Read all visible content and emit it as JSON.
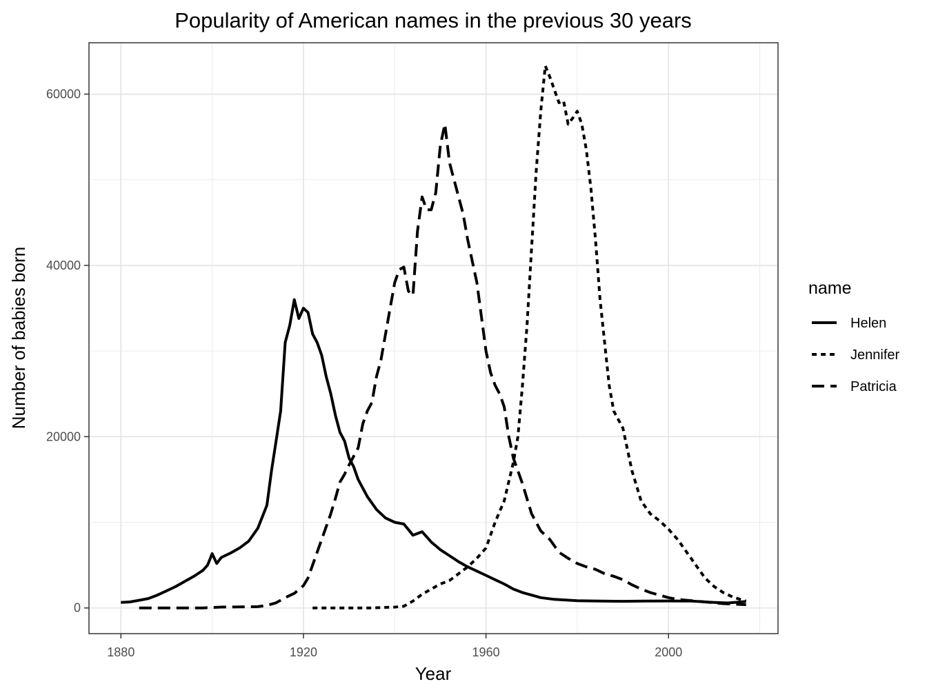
{
  "chart_data": {
    "type": "line",
    "title": "Popularity of American names in the previous 30 years",
    "xlabel": "Year",
    "ylabel": "Number of babies born",
    "xlim": [
      1873,
      2024
    ],
    "ylim": [
      -3000,
      66000
    ],
    "xticks": [
      1880,
      1920,
      1960,
      2000
    ],
    "yticks": [
      0,
      20000,
      40000,
      60000
    ],
    "grid": true,
    "legend": {
      "title": "name",
      "position": "right"
    },
    "series": [
      {
        "name": "Helen",
        "dash": "solid",
        "points": [
          [
            1880,
            636
          ],
          [
            1882,
            700
          ],
          [
            1884,
            900
          ],
          [
            1886,
            1100
          ],
          [
            1888,
            1500
          ],
          [
            1890,
            2000
          ],
          [
            1892,
            2500
          ],
          [
            1894,
            3100
          ],
          [
            1896,
            3700
          ],
          [
            1898,
            4400
          ],
          [
            1899,
            5000
          ],
          [
            1900,
            6343
          ],
          [
            1901,
            5200
          ],
          [
            1902,
            5900
          ],
          [
            1904,
            6400
          ],
          [
            1906,
            7000
          ],
          [
            1908,
            7800
          ],
          [
            1910,
            9300
          ],
          [
            1912,
            12000
          ],
          [
            1913,
            16000
          ],
          [
            1914,
            19500
          ],
          [
            1915,
            23000
          ],
          [
            1916,
            31000
          ],
          [
            1917,
            33000
          ],
          [
            1918,
            36000
          ],
          [
            1919,
            33800
          ],
          [
            1920,
            35000
          ],
          [
            1921,
            34500
          ],
          [
            1922,
            32000
          ],
          [
            1923,
            31000
          ],
          [
            1924,
            29500
          ],
          [
            1925,
            27000
          ],
          [
            1926,
            25000
          ],
          [
            1927,
            22500
          ],
          [
            1928,
            20500
          ],
          [
            1929,
            19500
          ],
          [
            1930,
            17500
          ],
          [
            1931,
            16500
          ],
          [
            1932,
            15000
          ],
          [
            1934,
            13000
          ],
          [
            1936,
            11500
          ],
          [
            1938,
            10500
          ],
          [
            1940,
            10000
          ],
          [
            1942,
            9800
          ],
          [
            1944,
            8500
          ],
          [
            1946,
            8900
          ],
          [
            1948,
            7700
          ],
          [
            1950,
            6800
          ],
          [
            1952,
            6100
          ],
          [
            1954,
            5400
          ],
          [
            1956,
            4800
          ],
          [
            1958,
            4300
          ],
          [
            1960,
            3800
          ],
          [
            1962,
            3300
          ],
          [
            1964,
            2800
          ],
          [
            1966,
            2200
          ],
          [
            1968,
            1800
          ],
          [
            1970,
            1500
          ],
          [
            1972,
            1200
          ],
          [
            1975,
            1000
          ],
          [
            1980,
            850
          ],
          [
            1985,
            800
          ],
          [
            1990,
            780
          ],
          [
            1995,
            800
          ],
          [
            2000,
            820
          ],
          [
            2005,
            800
          ],
          [
            2010,
            650
          ],
          [
            2013,
            580
          ],
          [
            2017,
            750
          ]
        ]
      },
      {
        "name": "Jennifer",
        "dash": "dotted",
        "points": [
          [
            1922,
            0
          ],
          [
            1935,
            0
          ],
          [
            1940,
            100
          ],
          [
            1942,
            200
          ],
          [
            1944,
            800
          ],
          [
            1946,
            1600
          ],
          [
            1948,
            2200
          ],
          [
            1950,
            2800
          ],
          [
            1952,
            3200
          ],
          [
            1954,
            4000
          ],
          [
            1956,
            4800
          ],
          [
            1958,
            5800
          ],
          [
            1960,
            7000
          ],
          [
            1962,
            10000
          ],
          [
            1964,
            12500
          ],
          [
            1966,
            17000
          ],
          [
            1967,
            20000
          ],
          [
            1968,
            26000
          ],
          [
            1969,
            33000
          ],
          [
            1970,
            42000
          ],
          [
            1971,
            51000
          ],
          [
            1972,
            58000
          ],
          [
            1973,
            63300
          ],
          [
            1974,
            62000
          ],
          [
            1975,
            60500
          ],
          [
            1976,
            59000
          ],
          [
            1977,
            59200
          ],
          [
            1978,
            56500
          ],
          [
            1979,
            57200
          ],
          [
            1980,
            58000
          ],
          [
            1981,
            56500
          ],
          [
            1982,
            53500
          ],
          [
            1983,
            49000
          ],
          [
            1984,
            43000
          ],
          [
            1985,
            36000
          ],
          [
            1986,
            31000
          ],
          [
            1987,
            26000
          ],
          [
            1988,
            23000
          ],
          [
            1990,
            21000
          ],
          [
            1992,
            16000
          ],
          [
            1994,
            12500
          ],
          [
            1996,
            11000
          ],
          [
            1998,
            10200
          ],
          [
            2000,
            9200
          ],
          [
            2002,
            8000
          ],
          [
            2004,
            6500
          ],
          [
            2006,
            5000
          ],
          [
            2008,
            3500
          ],
          [
            2010,
            2500
          ],
          [
            2012,
            1800
          ],
          [
            2014,
            1300
          ],
          [
            2016,
            950
          ],
          [
            2017,
            800
          ]
        ]
      },
      {
        "name": "Patricia",
        "dash": "dashed",
        "points": [
          [
            1884,
            0
          ],
          [
            1898,
            0
          ],
          [
            1902,
            100
          ],
          [
            1910,
            150
          ],
          [
            1912,
            300
          ],
          [
            1914,
            600
          ],
          [
            1916,
            1200
          ],
          [
            1918,
            1700
          ],
          [
            1920,
            2600
          ],
          [
            1921,
            3500
          ],
          [
            1922,
            5000
          ],
          [
            1923,
            6500
          ],
          [
            1924,
            8000
          ],
          [
            1925,
            9500
          ],
          [
            1926,
            11000
          ],
          [
            1927,
            12800
          ],
          [
            1928,
            14700
          ],
          [
            1929,
            15600
          ],
          [
            1930,
            16700
          ],
          [
            1931,
            17700
          ],
          [
            1932,
            18700
          ],
          [
            1933,
            21500
          ],
          [
            1934,
            23000
          ],
          [
            1935,
            24000
          ],
          [
            1936,
            27000
          ],
          [
            1937,
            29000
          ],
          [
            1938,
            32000
          ],
          [
            1939,
            35000
          ],
          [
            1940,
            38000
          ],
          [
            1941,
            39500
          ],
          [
            1942,
            39800
          ],
          [
            1943,
            37000
          ],
          [
            1944,
            36500
          ],
          [
            1945,
            44000
          ],
          [
            1946,
            48000
          ],
          [
            1947,
            46500
          ],
          [
            1948,
            46500
          ],
          [
            1949,
            48500
          ],
          [
            1950,
            54000
          ],
          [
            1951,
            56500
          ],
          [
            1952,
            52000
          ],
          [
            1953,
            50000
          ],
          [
            1954,
            48000
          ],
          [
            1955,
            46000
          ],
          [
            1956,
            43000
          ],
          [
            1957,
            40500
          ],
          [
            1958,
            38000
          ],
          [
            1959,
            34000
          ],
          [
            1960,
            30000
          ],
          [
            1961,
            27500
          ],
          [
            1962,
            26000
          ],
          [
            1963,
            25000
          ],
          [
            1964,
            23500
          ],
          [
            1965,
            20000
          ],
          [
            1966,
            17500
          ],
          [
            1967,
            16000
          ],
          [
            1968,
            14500
          ],
          [
            1970,
            11000
          ],
          [
            1972,
            9000
          ],
          [
            1974,
            8000
          ],
          [
            1976,
            6500
          ],
          [
            1978,
            5800
          ],
          [
            1980,
            5200
          ],
          [
            1982,
            4800
          ],
          [
            1984,
            4500
          ],
          [
            1986,
            4000
          ],
          [
            1988,
            3700
          ],
          [
            1990,
            3300
          ],
          [
            1992,
            2700
          ],
          [
            1994,
            2200
          ],
          [
            1996,
            1800
          ],
          [
            1998,
            1500
          ],
          [
            2000,
            1200
          ],
          [
            2002,
            1000
          ],
          [
            2004,
            900
          ],
          [
            2006,
            800
          ],
          [
            2008,
            700
          ],
          [
            2010,
            600
          ],
          [
            2012,
            500
          ],
          [
            2014,
            450
          ],
          [
            2016,
            400
          ],
          [
            2017,
            380
          ]
        ]
      }
    ]
  }
}
